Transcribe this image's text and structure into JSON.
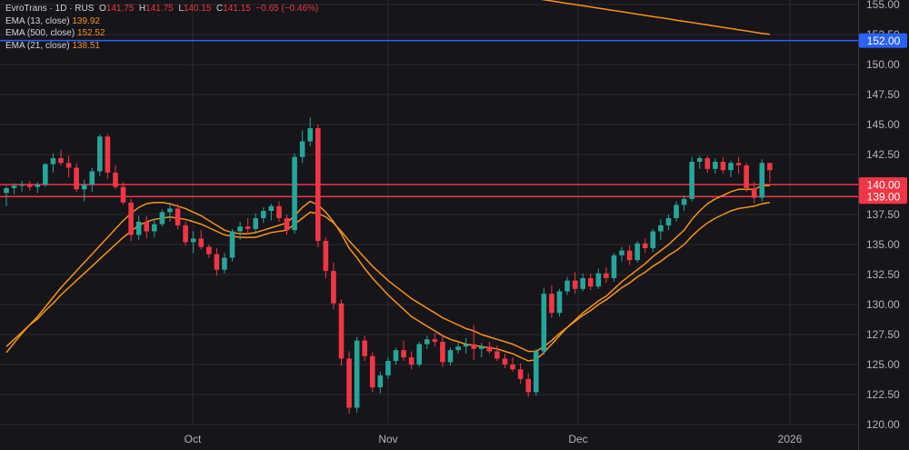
{
  "header": {
    "symbol": "EvroTrans · 1D · RUS",
    "o_label": "O",
    "o_value": "141.75",
    "h_label": "H",
    "h_value": "141.75",
    "l_label": "L",
    "l_value": "140.15",
    "c_label": "C",
    "c_value": "141.15",
    "change": "−0.65 (−0.46%)"
  },
  "indicators": [
    {
      "label": "EMA (13, close)",
      "value": "139.92",
      "color": "#f7931a"
    },
    {
      "label": "EMA (500, close)",
      "value": "152.52",
      "color": "#f7931a"
    },
    {
      "label": "EMA (21, close)",
      "value": "138.51",
      "color": "#f7931a"
    }
  ],
  "colors": {
    "background": "#161519",
    "up": "#26a69a",
    "down": "#f23645",
    "ema": "#f7931a",
    "hline_red": "#f23645",
    "hline_blue": "#2962ff",
    "grid": "#2a2a31",
    "axis_text": "#b2b5be"
  },
  "chart_data": {
    "type": "candlestick",
    "title": "EvroTrans · 1D · RUS",
    "x_ticks": [
      "Oct",
      "Nov",
      "Dec",
      "2026"
    ],
    "y_ticks": [
      "120.00",
      "122.50",
      "125.00",
      "127.50",
      "130.00",
      "132.50",
      "135.00",
      "137.50",
      "140.00",
      "142.50",
      "145.00",
      "147.50",
      "150.00",
      "152.50",
      "155.00"
    ],
    "ylim": [
      120,
      155.6
    ],
    "price_labels": [
      {
        "value": 152.0,
        "text": "152.00",
        "color": "#2962ff"
      },
      {
        "value": 140.0,
        "text": "140.00",
        "color": "#f23645"
      },
      {
        "value": 139.0,
        "text": "139.00",
        "color": "#f23645"
      }
    ],
    "horizontal_lines": [
      152.0,
      140.0,
      139.0
    ],
    "grid": true,
    "candles": [
      [
        139.3,
        139.9,
        138.2,
        139.7
      ],
      [
        139.7,
        140.1,
        139.2,
        139.9
      ],
      [
        139.9,
        140.3,
        139.4,
        140.0
      ],
      [
        140.0,
        140.3,
        139.5,
        139.8
      ],
      [
        139.8,
        140.2,
        139.3,
        140.0
      ],
      [
        140.0,
        141.8,
        139.8,
        141.7
      ],
      [
        141.7,
        142.6,
        141.0,
        142.2
      ],
      [
        142.2,
        142.9,
        141.6,
        141.8
      ],
      [
        141.8,
        142.4,
        140.6,
        141.4
      ],
      [
        141.4,
        141.8,
        139.4,
        139.6
      ],
      [
        139.6,
        140.4,
        138.6,
        140.0
      ],
      [
        140.0,
        141.4,
        139.4,
        141.1
      ],
      [
        141.1,
        144.2,
        140.7,
        144.0
      ],
      [
        144.0,
        144.2,
        140.5,
        141.0
      ],
      [
        141.0,
        141.6,
        139.6,
        139.8
      ],
      [
        139.8,
        140.2,
        138.3,
        138.5
      ],
      [
        138.5,
        138.8,
        135.3,
        135.8
      ],
      [
        135.8,
        137.4,
        135.4,
        136.9
      ],
      [
        136.9,
        137.4,
        135.5,
        136.1
      ],
      [
        136.1,
        137.1,
        135.6,
        136.7
      ],
      [
        136.7,
        137.9,
        136.5,
        137.7
      ],
      [
        137.7,
        138.3,
        136.9,
        138.0
      ],
      [
        138.0,
        138.4,
        136.3,
        136.6
      ],
      [
        136.6,
        136.9,
        134.9,
        135.2
      ],
      [
        135.2,
        136.1,
        134.3,
        135.5
      ],
      [
        135.5,
        136.2,
        134.6,
        134.8
      ],
      [
        134.8,
        135.0,
        133.9,
        134.2
      ],
      [
        134.2,
        134.7,
        132.4,
        132.9
      ],
      [
        132.9,
        134.3,
        132.6,
        133.9
      ],
      [
        133.9,
        136.3,
        133.6,
        136.1
      ],
      [
        136.1,
        136.9,
        135.4,
        136.5
      ],
      [
        136.5,
        137.2,
        135.9,
        136.3
      ],
      [
        136.3,
        137.6,
        135.9,
        137.2
      ],
      [
        137.2,
        138.1,
        136.8,
        137.8
      ],
      [
        137.8,
        138.4,
        137.0,
        138.2
      ],
      [
        138.2,
        138.6,
        136.9,
        137.2
      ],
      [
        137.2,
        137.5,
        135.8,
        136.2
      ],
      [
        136.2,
        142.6,
        135.9,
        142.3
      ],
      [
        142.3,
        144.5,
        141.8,
        143.6
      ],
      [
        143.6,
        145.6,
        143.2,
        144.7
      ],
      [
        144.7,
        145.0,
        134.8,
        135.3
      ],
      [
        135.3,
        135.6,
        132.2,
        132.8
      ],
      [
        132.8,
        133.5,
        129.6,
        130.1
      ],
      [
        130.1,
        130.4,
        124.9,
        125.5
      ],
      [
        125.5,
        126.1,
        120.9,
        121.4
      ],
      [
        121.4,
        127.3,
        121.0,
        127.0
      ],
      [
        127.0,
        127.4,
        125.3,
        125.7
      ],
      [
        125.7,
        126.0,
        122.7,
        123.1
      ],
      [
        123.1,
        124.4,
        122.6,
        124.1
      ],
      [
        124.1,
        125.6,
        123.8,
        125.3
      ],
      [
        125.3,
        126.4,
        125.0,
        126.2
      ],
      [
        126.2,
        127.0,
        125.3,
        125.6
      ],
      [
        125.6,
        126.1,
        124.6,
        125.0
      ],
      [
        125.0,
        126.9,
        124.8,
        126.7
      ],
      [
        126.7,
        127.4,
        126.3,
        127.1
      ],
      [
        127.1,
        127.6,
        126.5,
        126.9
      ],
      [
        126.9,
        127.5,
        124.8,
        125.2
      ],
      [
        125.2,
        126.4,
        124.9,
        126.2
      ],
      [
        126.2,
        126.8,
        125.9,
        126.5
      ],
      [
        126.5,
        127.2,
        125.9,
        126.7
      ],
      [
        126.7,
        128.3,
        125.4,
        126.3
      ],
      [
        126.3,
        126.8,
        125.6,
        126.5
      ],
      [
        126.5,
        126.9,
        125.9,
        126.1
      ],
      [
        126.1,
        126.6,
        125.3,
        125.5
      ],
      [
        125.5,
        125.9,
        124.7,
        125.0
      ],
      [
        125.0,
        125.6,
        124.4,
        124.6
      ],
      [
        124.6,
        125.1,
        123.4,
        123.8
      ],
      [
        123.8,
        124.3,
        122.3,
        122.7
      ],
      [
        122.7,
        126.3,
        122.4,
        126.1
      ],
      [
        126.1,
        131.4,
        125.8,
        130.9
      ],
      [
        130.9,
        131.6,
        128.9,
        129.3
      ],
      [
        129.3,
        131.3,
        129.0,
        131.1
      ],
      [
        131.1,
        132.3,
        130.8,
        132.0
      ],
      [
        132.0,
        132.7,
        130.9,
        131.3
      ],
      [
        131.3,
        132.6,
        131.1,
        132.2
      ],
      [
        132.2,
        132.6,
        131.2,
        131.5
      ],
      [
        131.5,
        133.0,
        131.3,
        132.6
      ],
      [
        132.6,
        133.1,
        131.8,
        132.2
      ],
      [
        132.2,
        134.3,
        131.9,
        134.1
      ],
      [
        134.1,
        134.8,
        133.6,
        134.5
      ],
      [
        134.5,
        134.9,
        133.3,
        133.7
      ],
      [
        133.7,
        135.3,
        133.5,
        135.1
      ],
      [
        135.1,
        135.5,
        134.3,
        134.7
      ],
      [
        134.7,
        136.3,
        134.4,
        136.1
      ],
      [
        136.1,
        137.1,
        135.4,
        136.6
      ],
      [
        136.6,
        137.5,
        136.2,
        137.2
      ],
      [
        137.2,
        138.6,
        136.9,
        138.3
      ],
      [
        138.3,
        139.1,
        137.8,
        138.8
      ],
      [
        138.8,
        142.3,
        138.6,
        141.9
      ],
      [
        141.9,
        142.4,
        141.3,
        142.2
      ],
      [
        142.2,
        142.4,
        141.0,
        141.3
      ],
      [
        141.3,
        142.2,
        140.9,
        141.9
      ],
      [
        141.9,
        142.3,
        140.9,
        141.2
      ],
      [
        141.2,
        142.0,
        140.6,
        141.8
      ],
      [
        141.8,
        142.3,
        140.9,
        141.6
      ],
      [
        141.6,
        141.8,
        139.4,
        139.7
      ],
      [
        139.7,
        140.2,
        138.4,
        138.9
      ],
      [
        138.9,
        142.1,
        138.6,
        141.8
      ],
      [
        141.8,
        141.8,
        140.2,
        141.2
      ]
    ],
    "ema_13": [
      126.0,
      126.8,
      127.6,
      128.3,
      129.0,
      129.8,
      130.6,
      131.4,
      132.1,
      132.8,
      133.5,
      134.2,
      134.9,
      135.6,
      136.3,
      137.0,
      137.6,
      138.1,
      138.4,
      138.5,
      138.5,
      138.4,
      138.2,
      138.0,
      137.7,
      137.4,
      137.0,
      136.6,
      136.2,
      136.0,
      135.9,
      135.9,
      136.0,
      136.2,
      136.4,
      136.6,
      136.8,
      137.4,
      138.1,
      138.6,
      138.3,
      137.7,
      136.9,
      135.9,
      134.7,
      133.9,
      133.0,
      132.2,
      131.5,
      130.8,
      130.2,
      129.6,
      129.0,
      128.6,
      128.2,
      127.8,
      127.4,
      127.1,
      126.9,
      126.7,
      126.6,
      126.5,
      126.4,
      126.3,
      126.1,
      125.9,
      125.6,
      125.3,
      125.4,
      126.0,
      126.7,
      127.4,
      128.1,
      128.7,
      129.3,
      129.8,
      130.3,
      130.7,
      131.3,
      131.9,
      132.4,
      132.9,
      133.4,
      134.0,
      134.5,
      135.0,
      135.6,
      136.2,
      137.1,
      137.8,
      138.4,
      138.8,
      139.1,
      139.4,
      139.6,
      139.6,
      139.6,
      139.9,
      139.92
    ],
    "ema_21": [
      126.5,
      127.1,
      127.7,
      128.3,
      128.8,
      129.5,
      130.1,
      130.8,
      131.4,
      132.0,
      132.6,
      133.2,
      133.8,
      134.4,
      135.0,
      135.6,
      136.1,
      136.6,
      136.9,
      137.1,
      137.2,
      137.3,
      137.2,
      137.1,
      136.9,
      136.7,
      136.4,
      136.1,
      135.8,
      135.7,
      135.6,
      135.6,
      135.6,
      135.8,
      136.0,
      136.1,
      136.2,
      136.7,
      137.2,
      137.7,
      137.6,
      137.3,
      136.8,
      136.1,
      135.3,
      134.6,
      133.9,
      133.2,
      132.6,
      132.0,
      131.5,
      131.0,
      130.5,
      130.1,
      129.7,
      129.3,
      128.9,
      128.6,
      128.3,
      128.0,
      127.8,
      127.5,
      127.3,
      127.1,
      126.9,
      126.7,
      126.4,
      126.1,
      126.1,
      126.5,
      127.0,
      127.6,
      128.1,
      128.6,
      129.1,
      129.5,
      130.0,
      130.4,
      130.9,
      131.4,
      131.8,
      132.3,
      132.7,
      133.2,
      133.6,
      134.1,
      134.5,
      135.0,
      135.7,
      136.3,
      136.8,
      137.2,
      137.5,
      137.8,
      138.0,
      138.1,
      138.2,
      138.4,
      138.51
    ],
    "ema_500": [
      156.4,
      156.3,
      156.2,
      156.1,
      156.0,
      155.9,
      155.8,
      155.7,
      155.6,
      155.5,
      155.4,
      155.3,
      155.2,
      155.1,
      155.0,
      154.9,
      154.8,
      154.7,
      154.6,
      154.5,
      154.4,
      154.3,
      154.2,
      154.1,
      154.0,
      153.9,
      153.8,
      153.7,
      153.6,
      153.5,
      153.4,
      153.3,
      153.2,
      153.1,
      153.0,
      152.9,
      152.8,
      152.7,
      152.6,
      152.52
    ]
  }
}
